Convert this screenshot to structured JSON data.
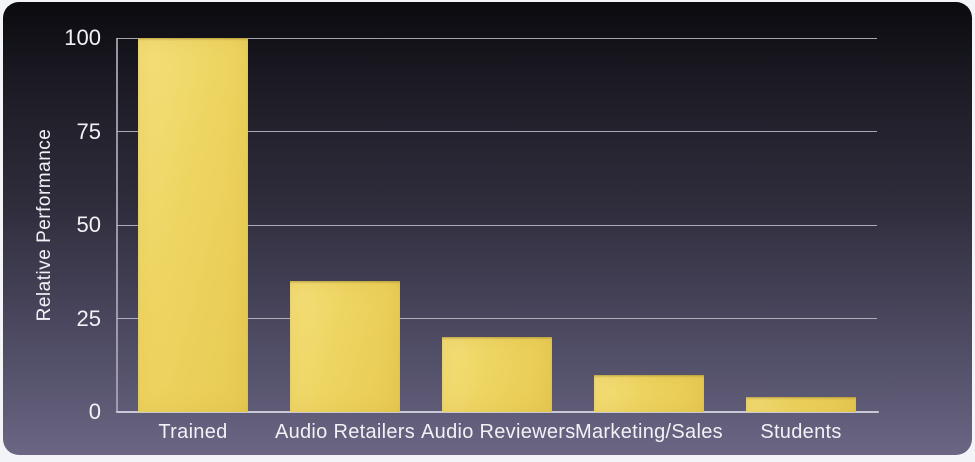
{
  "page": {
    "bg_color": "#f3f4f8"
  },
  "slide": {
    "gradient_top": "#0a0a0f",
    "gradient_upper_mid": "#1c1b24",
    "gradient_mid": "#2f2d3c",
    "gradient_lower": "#4b4860",
    "gradient_bottom": "#6a6684"
  },
  "chart_data": {
    "type": "bar",
    "title": "",
    "xlabel": "",
    "ylabel": "Relative Performance",
    "categories": [
      "Trained",
      "Audio Retailers",
      "Audio Reviewers",
      "Marketing/Sales",
      "Students"
    ],
    "values": [
      100,
      35,
      20,
      10,
      4
    ],
    "ylim": [
      0,
      100
    ],
    "yticks": [
      0,
      25,
      50,
      75,
      100
    ],
    "grid": true,
    "legend": false,
    "bar_color": "#eed562",
    "gridline_color": "#c9c8d6",
    "axis_line_color": "#a5a3b4",
    "label_color": "#f2f1f6"
  }
}
